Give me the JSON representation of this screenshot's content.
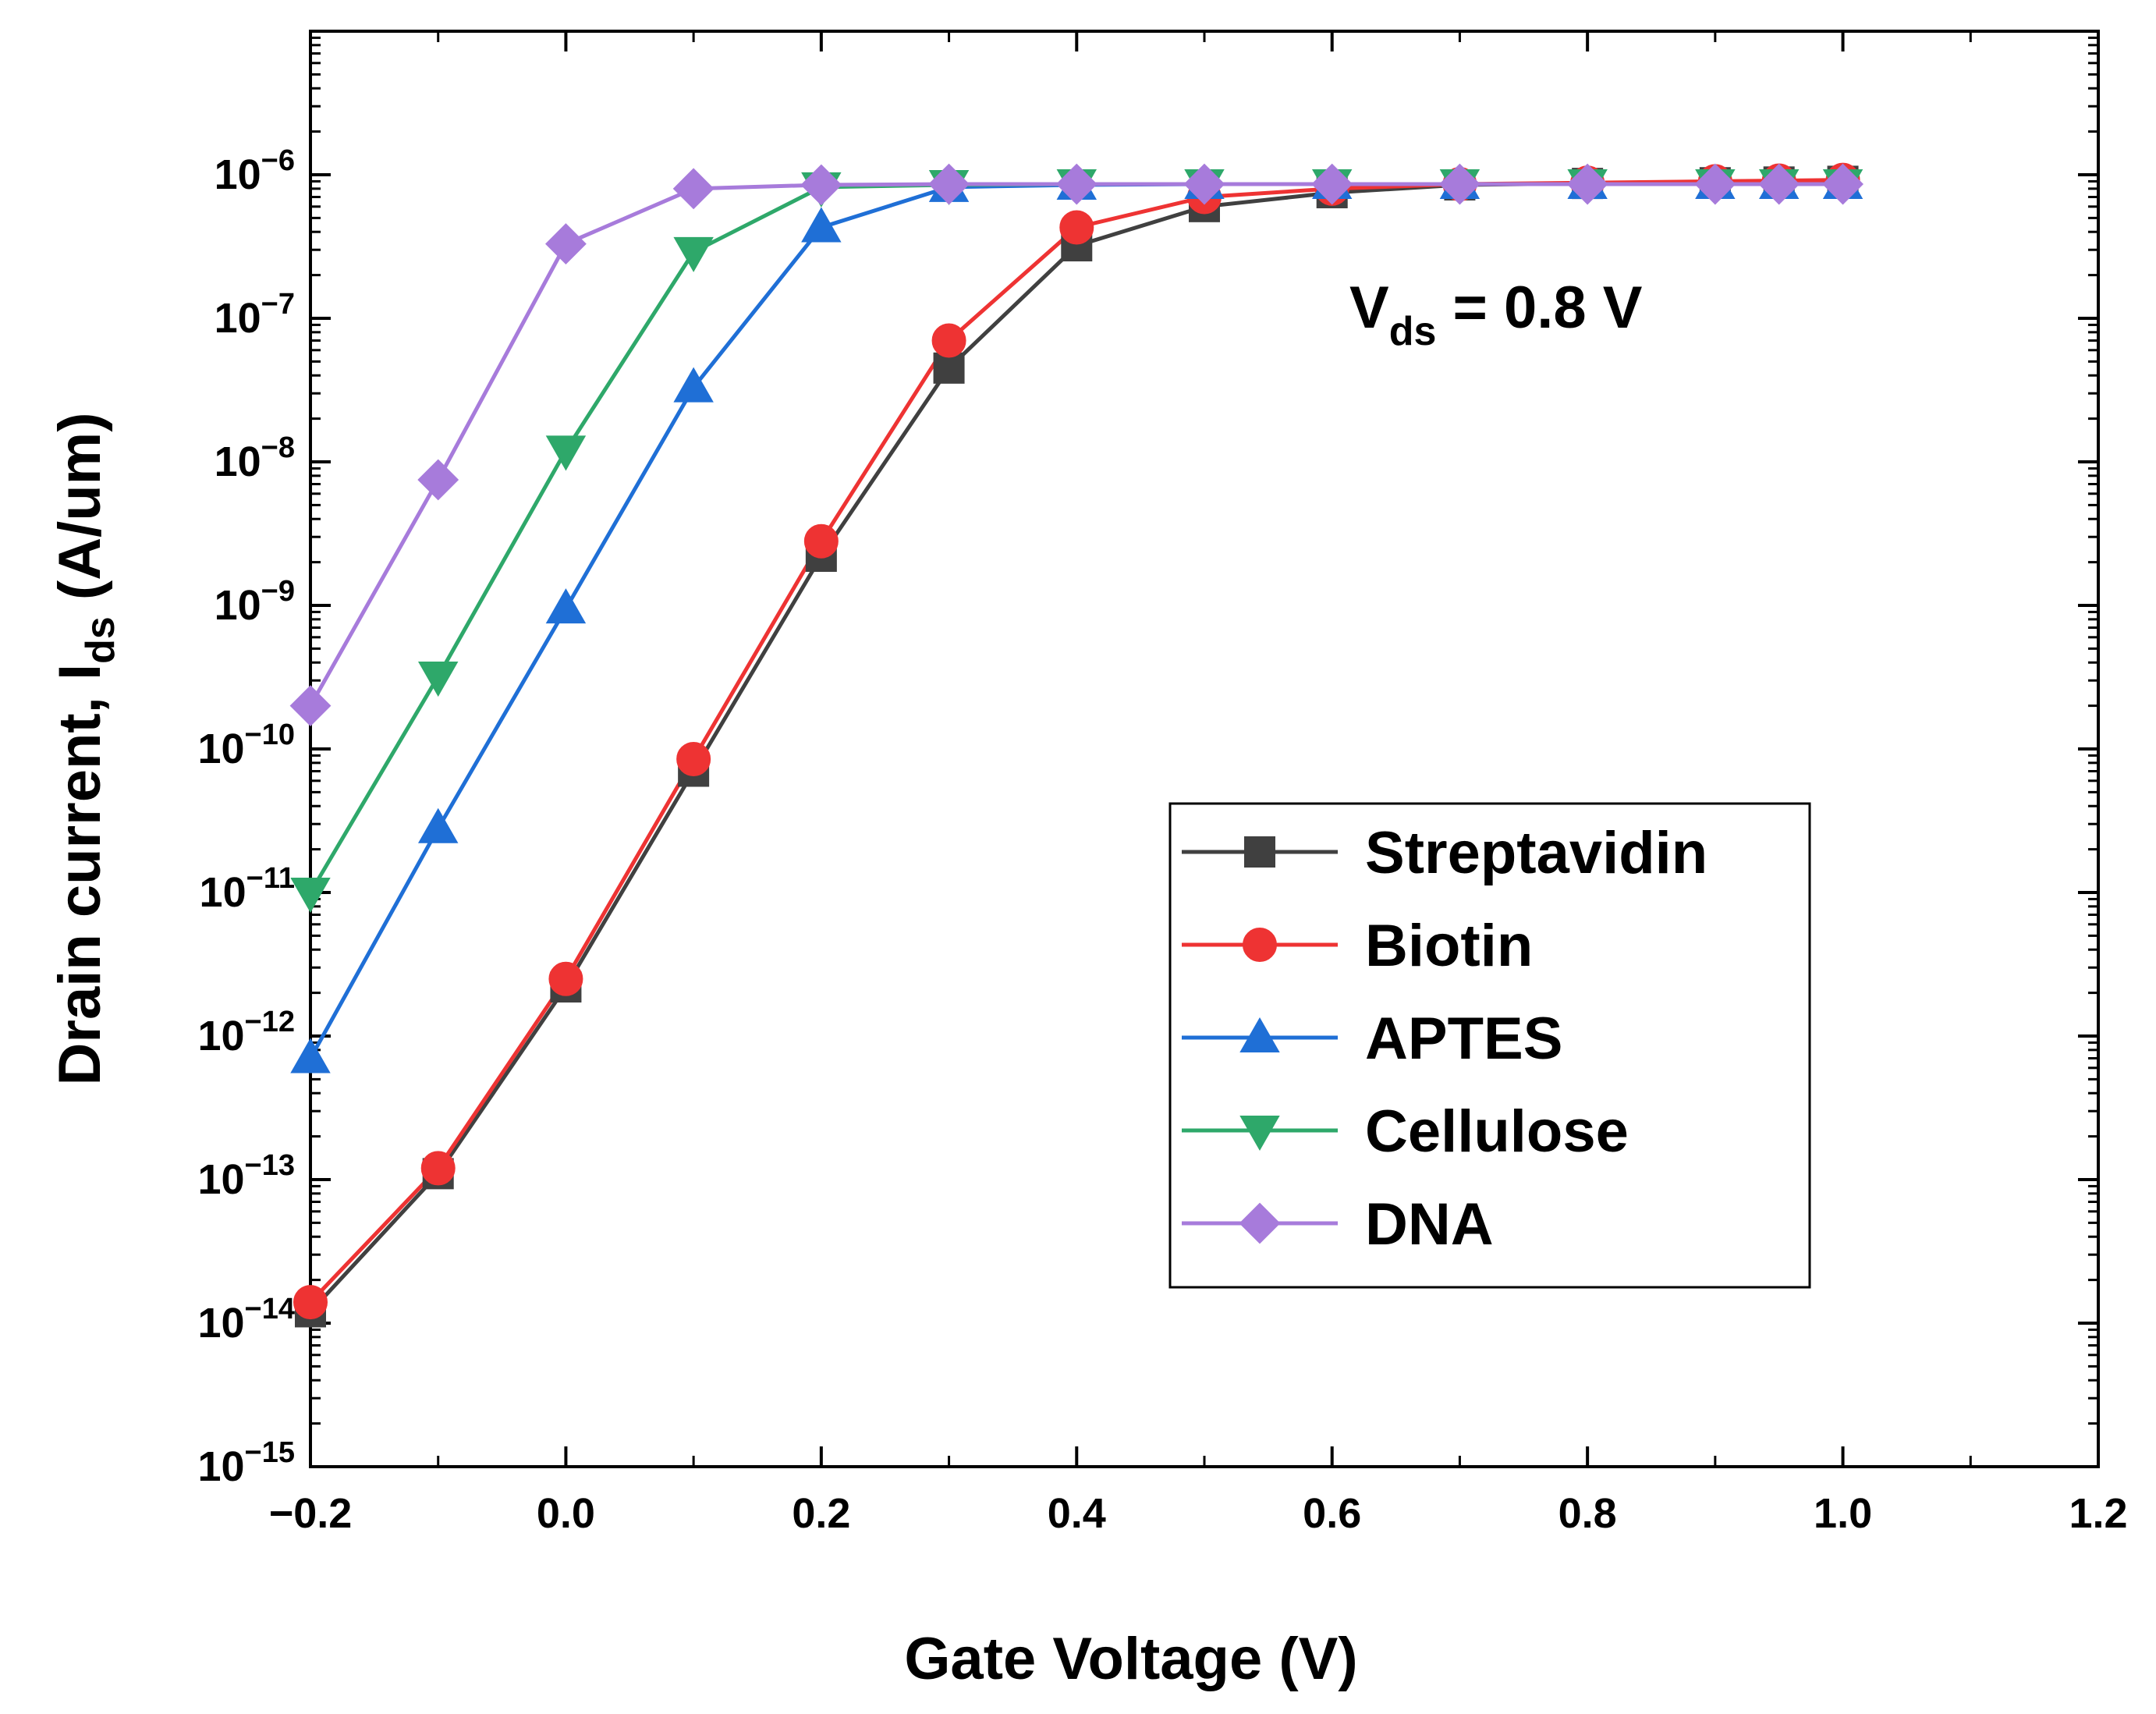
{
  "chart_data": {
    "type": "line",
    "xlabel": "Gate Voltage (V)",
    "ylabel": {
      "main": "Drain current, I",
      "sub": "ds",
      "unit": " (A/um)"
    },
    "annotation": {
      "main": "V",
      "sub": "ds",
      "rest": " = 0.8 V"
    },
    "y_scale": "log",
    "xlim": [
      -0.2,
      1.2
    ],
    "ylim_exponent": [
      -15,
      -5
    ],
    "x_ticks": [
      -0.2,
      0.0,
      0.2,
      0.4,
      0.6,
      0.8,
      1.0,
      1.2
    ],
    "x_tick_labels": [
      "−0.2",
      "0.0",
      "0.2",
      "0.4",
      "0.6",
      "0.8",
      "1.0",
      "1.2"
    ],
    "y_tick_exponents": [
      -15,
      -14,
      -13,
      -12,
      -11,
      -10,
      -9,
      -8,
      -7,
      -6
    ],
    "y_tick_labels": [
      "−15",
      "−14",
      "−13",
      "−12",
      "−11",
      "−10",
      "−9",
      "−8",
      "−7",
      "−6"
    ],
    "y_tick_base": "10",
    "grid": false,
    "legend_position": "bottom-right",
    "series": [
      {
        "name": "Streptavidin",
        "color": "#404040",
        "marker": "square",
        "x": [
          -0.2,
          -0.1,
          0.0,
          0.1,
          0.2,
          0.3,
          0.4,
          0.5,
          0.6,
          0.7,
          0.8,
          0.9,
          0.95,
          1.0
        ],
        "y": [
          1.2e-14,
          1.1e-13,
          2.2e-12,
          7e-11,
          2.2e-09,
          4.5e-08,
          3.2e-07,
          6e-07,
          7.5e-07,
          8.5e-07,
          8.7e-07,
          8.8e-07,
          8.9e-07,
          9e-07
        ]
      },
      {
        "name": "Biotin",
        "color": "#ee3333",
        "marker": "circle",
        "x": [
          -0.2,
          -0.1,
          0.0,
          0.1,
          0.2,
          0.3,
          0.4,
          0.5,
          0.6,
          0.7,
          0.8,
          0.9,
          0.95,
          1.0
        ],
        "y": [
          1.4e-14,
          1.2e-13,
          2.5e-12,
          8.5e-11,
          2.8e-09,
          7e-08,
          4.3e-07,
          7e-07,
          8e-07,
          8.6e-07,
          8.8e-07,
          9e-07,
          9.1e-07,
          9.2e-07
        ]
      },
      {
        "name": "APTES",
        "color": "#1f6fd6",
        "marker": "triangle-up",
        "x": [
          -0.2,
          -0.1,
          0.0,
          0.1,
          0.2,
          0.3,
          0.4,
          0.5,
          0.6,
          0.7,
          0.8,
          0.9,
          0.95,
          1.0
        ],
        "y": [
          7e-13,
          2.8e-11,
          9.5e-10,
          3.3e-08,
          4.3e-07,
          8.2e-07,
          8.5e-07,
          8.6e-07,
          8.6e-07,
          8.6e-07,
          8.6e-07,
          8.6e-07,
          8.6e-07,
          8.6e-07
        ]
      },
      {
        "name": "Cellulose",
        "color": "#2ea86a",
        "marker": "triangle-down",
        "x": [
          -0.2,
          -0.1,
          0.0,
          0.1,
          0.2,
          0.3,
          0.4,
          0.5,
          0.6,
          0.7,
          0.8,
          0.9,
          0.95,
          1.0
        ],
        "y": [
          1e-11,
          3.2e-10,
          1.2e-08,
          2.9e-07,
          8.2e-07,
          8.5e-07,
          8.6e-07,
          8.6e-07,
          8.6e-07,
          8.6e-07,
          8.6e-07,
          8.6e-07,
          8.6e-07,
          8.6e-07
        ]
      },
      {
        "name": "DNA",
        "color": "#a77bdb",
        "marker": "diamond",
        "x": [
          -0.2,
          -0.1,
          0.0,
          0.1,
          0.2,
          0.3,
          0.4,
          0.5,
          0.6,
          0.7,
          0.8,
          0.9,
          0.95,
          1.0
        ],
        "y": [
          2e-10,
          7.5e-09,
          3.3e-07,
          8e-07,
          8.5e-07,
          8.6e-07,
          8.6e-07,
          8.6e-07,
          8.6e-07,
          8.6e-07,
          8.6e-07,
          8.6e-07,
          8.6e-07,
          8.6e-07
        ]
      }
    ]
  }
}
